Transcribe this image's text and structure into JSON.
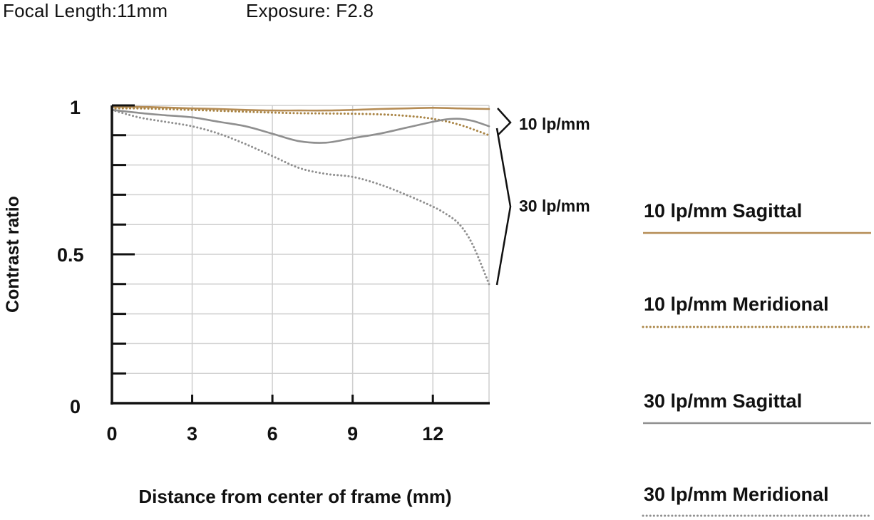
{
  "header": {
    "focal_length": "Focal Length:11mm",
    "exposure": "Exposure: F2.8"
  },
  "colors": {
    "sagittal_10": "#b58c55",
    "meridional_10": "#a98444",
    "sagittal_30": "#8f8f8f",
    "meridional_30": "#8f8f8f",
    "grid": "#cfcfcf",
    "axis": "#111111"
  },
  "chart_data": {
    "type": "line",
    "title": "",
    "xlabel": "Distance from center of frame (mm)",
    "ylabel": "Contrast ratio",
    "xlim": [
      0,
      14.1
    ],
    "ylim": [
      0,
      1
    ],
    "x_ticks": [
      0,
      3,
      6,
      9,
      12
    ],
    "x_tick_labels": [
      "0",
      "3",
      "6",
      "9",
      "12"
    ],
    "y_ticks": [
      0,
      0.5,
      1
    ],
    "y_tick_labels": [
      "0",
      "0.5",
      "1"
    ],
    "grid": true,
    "legend_position": "right",
    "bracket_labels": [
      "10 lp/mm",
      "30 lp/mm"
    ],
    "series": [
      {
        "name": "10 lp/mm Sagittal",
        "style": "solid",
        "x": [
          0,
          1,
          2,
          3,
          4,
          5,
          6,
          7,
          8,
          9,
          10,
          11,
          12,
          13,
          14.1
        ],
        "y": [
          0.995,
          0.995,
          0.993,
          0.99,
          0.988,
          0.985,
          0.983,
          0.983,
          0.983,
          0.985,
          0.988,
          0.99,
          0.992,
          0.99,
          0.988
        ]
      },
      {
        "name": "10 lp/mm Meridional",
        "style": "dotted",
        "x": [
          0,
          1,
          2,
          3,
          4,
          5,
          6,
          7,
          8,
          9,
          10,
          11,
          12,
          13,
          14.1
        ],
        "y": [
          0.99,
          0.99,
          0.988,
          0.985,
          0.982,
          0.979,
          0.976,
          0.974,
          0.973,
          0.972,
          0.97,
          0.965,
          0.955,
          0.935,
          0.9
        ]
      },
      {
        "name": "30 lp/mm Sagittal",
        "style": "solid",
        "x": [
          0,
          1,
          2,
          3,
          4,
          5,
          6,
          7,
          8,
          9,
          10,
          11,
          12,
          12.5,
          13,
          13.5,
          14.1
        ],
        "y": [
          0.985,
          0.975,
          0.967,
          0.96,
          0.945,
          0.93,
          0.905,
          0.88,
          0.875,
          0.89,
          0.905,
          0.925,
          0.945,
          0.953,
          0.955,
          0.948,
          0.93
        ]
      },
      {
        "name": "30 lp/mm Meridional",
        "style": "dotted",
        "x": [
          0,
          1,
          2,
          3,
          4,
          5,
          6,
          7,
          8,
          9,
          10,
          11,
          12,
          12.5,
          13,
          13.5,
          14.1
        ],
        "y": [
          0.985,
          0.96,
          0.945,
          0.93,
          0.905,
          0.87,
          0.83,
          0.79,
          0.77,
          0.76,
          0.735,
          0.7,
          0.66,
          0.635,
          0.6,
          0.53,
          0.4
        ]
      }
    ]
  }
}
